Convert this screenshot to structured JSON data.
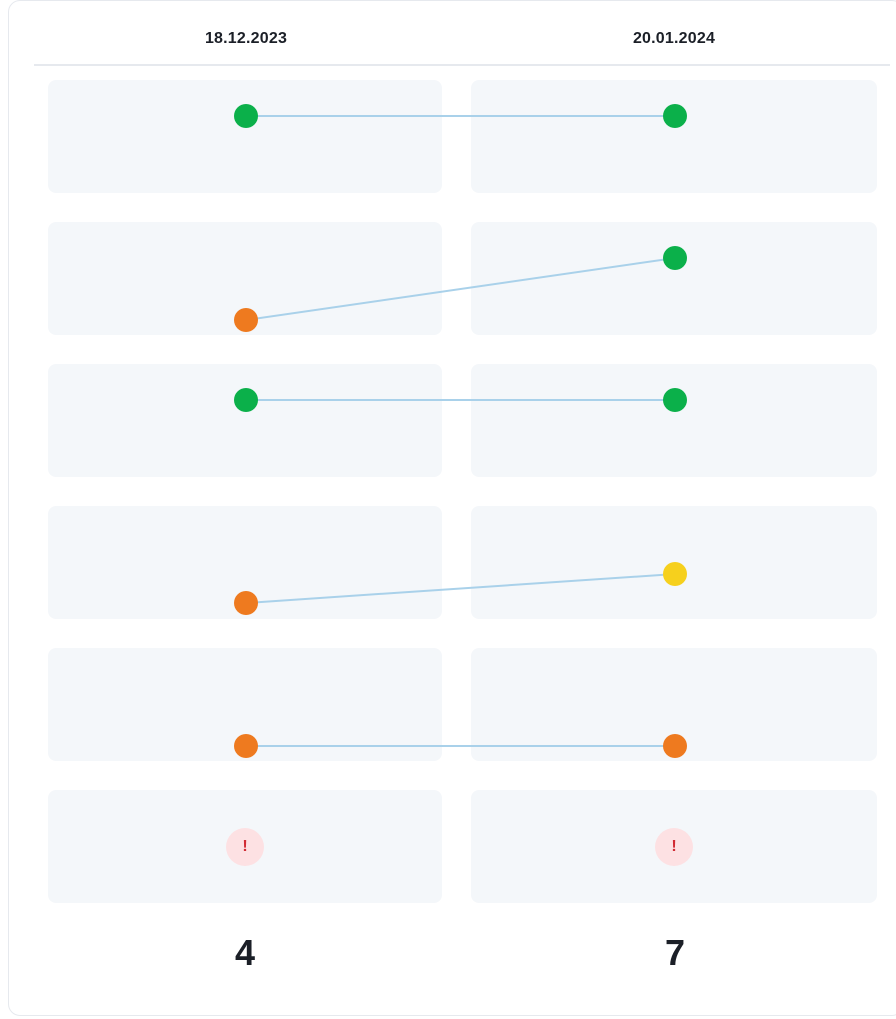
{
  "columns": [
    {
      "date": "18.12.2023",
      "total": "4"
    },
    {
      "date": "20.01.2024",
      "total": "7"
    }
  ],
  "rows": [
    {
      "from": {
        "status": "green"
      },
      "to": {
        "status": "green"
      }
    },
    {
      "from": {
        "status": "orange"
      },
      "to": {
        "status": "green"
      }
    },
    {
      "from": {
        "status": "green"
      },
      "to": {
        "status": "green"
      }
    },
    {
      "from": {
        "status": "orange"
      },
      "to": {
        "status": "yellow"
      }
    },
    {
      "from": {
        "status": "orange"
      },
      "to": {
        "status": "orange"
      }
    },
    {
      "from": {
        "status": "error",
        "icon": "!"
      },
      "to": {
        "status": "error",
        "icon": "!"
      }
    }
  ],
  "colors": {
    "green": "#0bb04a",
    "orange": "#ee7a1f",
    "yellow": "#f6d01d",
    "line": "#a9d1ea",
    "error_bg": "#fde1e3",
    "error_fg": "#d12b34"
  }
}
